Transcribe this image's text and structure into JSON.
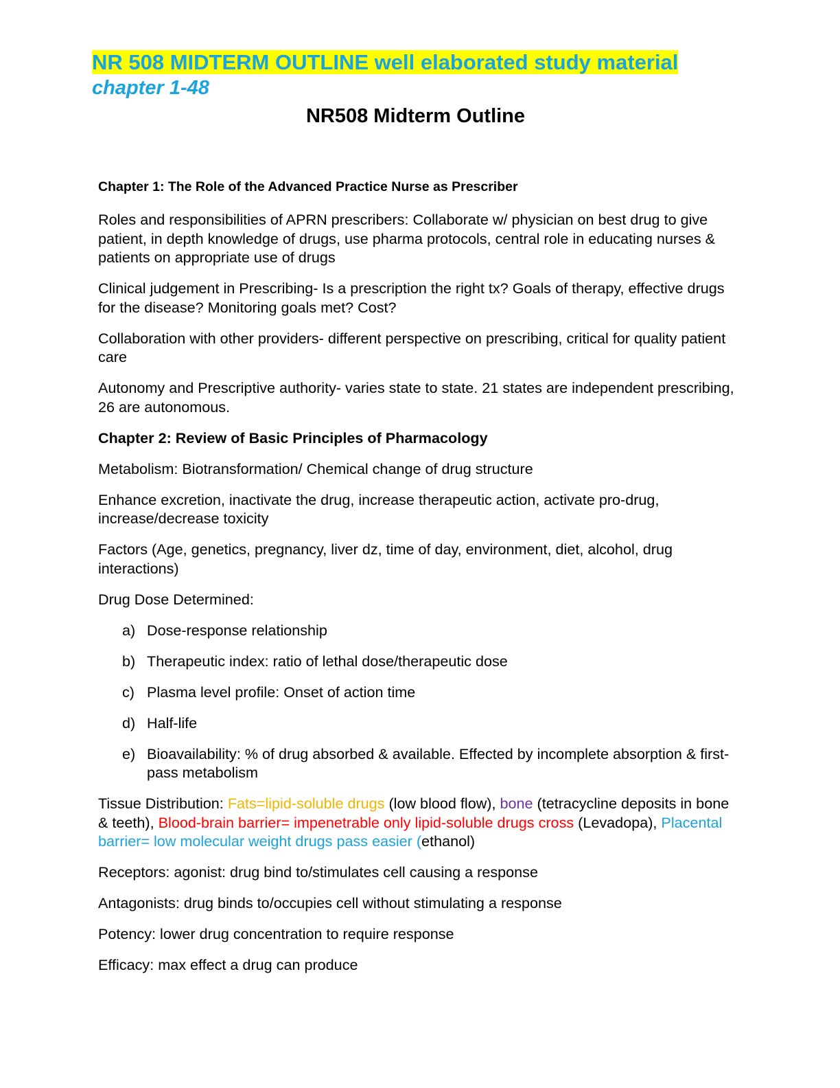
{
  "header": {
    "banner": "NR 508 MIDTERM OUTLINE well elaborated study material",
    "banner_sub": "chapter 1-48",
    "title": "NR508 Midterm Outline"
  },
  "colors": {
    "banner_text": "#1AA3DD",
    "highlight": "#FFFF00",
    "fats": "#F4B400",
    "bone": "#7030A0",
    "bbb": "#FF0000",
    "placenta": "#1AA3DD"
  },
  "chapter1": {
    "heading": "Chapter 1: The Role of the Advanced Practice Nurse as Prescriber",
    "paragraphs": [
      "Roles and responsibilities of APRN prescribers: Collaborate w/ physician on best drug to give patient, in depth knowledge of drugs, use pharma protocols, central role in educating nurses & patients on appropriate use of drugs",
      "Clinical judgement in Prescribing- Is a prescription the right tx? Goals of therapy, effective drugs for the disease? Monitoring goals met? Cost?",
      "Collaboration with other providers- different perspective on prescribing, critical for quality patient care",
      "Autonomy and Prescriptive authority- varies state to state. 21 states are independent prescribing, 26 are autonomous."
    ]
  },
  "chapter2": {
    "heading": "Chapter 2: Review of Basic Principles of Pharmacology",
    "paragraphs": [
      "Metabolism: Biotransformation/ Chemical change of drug structure",
      "Enhance excretion, inactivate the drug, increase therapeutic action, activate pro-drug, increase/decrease toxicity",
      "Factors (Age, genetics, pregnancy, liver dz, time of day, environment, diet, alcohol, drug interactions)",
      "Drug Dose Determined:"
    ],
    "dose_list": [
      {
        "marker": "a)",
        "text": "Dose-response relationship"
      },
      {
        "marker": "b)",
        "text": "Therapeutic index: ratio of lethal dose/therapeutic dose"
      },
      {
        "marker": "c)",
        "text": "Plasma level profile: Onset of action time"
      },
      {
        "marker": "d)",
        "text": "Half-life"
      },
      {
        "marker": "e)",
        "text": "Bioavailability: % of drug absorbed & available. Effected by incomplete absorption & first-pass metabolism"
      }
    ],
    "tissue": {
      "lead": "Tissue Distribution: ",
      "fats": "Fats=lipid-soluble drugs",
      "fats_after": " (low blood flow), ",
      "bone": "bone",
      "bone_after": " (tetracycline deposits in bone & teeth), ",
      "bbb": "Blood-brain barrier= impenetrable only lipid-soluble drugs cross",
      "bbb_after": " (Levadopa), ",
      "placenta": "Placental barrier= low molecular weight drugs pass easier (",
      "placenta_after": "ethanol)"
    },
    "closing": [
      "Receptors: agonist: drug bind to/stimulates cell causing a response",
      "Antagonists: drug binds to/occupies cell without stimulating a response",
      "Potency: lower drug concentration to require response",
      "Efficacy: max effect a drug can produce"
    ]
  }
}
